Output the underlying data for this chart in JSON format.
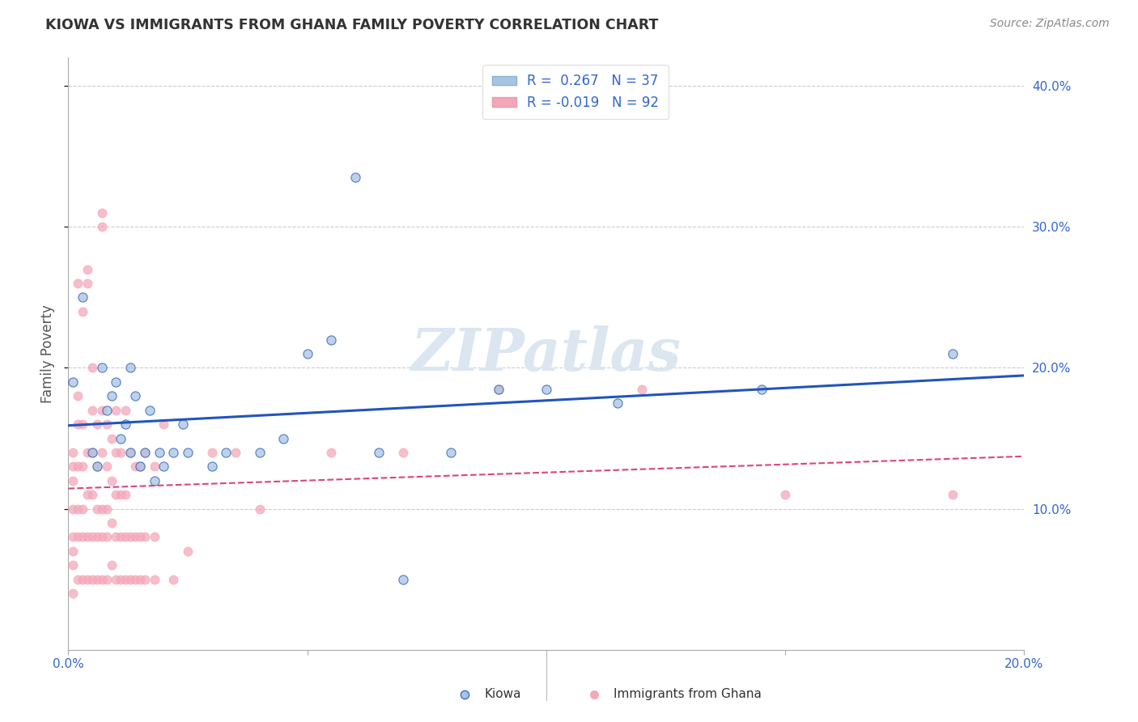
{
  "title": "KIOWA VS IMMIGRANTS FROM GHANA FAMILY POVERTY CORRELATION CHART",
  "source": "Source: ZipAtlas.com",
  "ylabel": "Family Poverty",
  "xlim": [
    0.0,
    0.2
  ],
  "ylim": [
    0.0,
    0.42
  ],
  "ytick_labels_right": [
    "10.0%",
    "20.0%",
    "30.0%",
    "40.0%"
  ],
  "ytick_vals_right": [
    0.1,
    0.2,
    0.3,
    0.4
  ],
  "color_kiowa": "#a8c4e0",
  "color_ghana": "#f4a7b9",
  "line_color_kiowa": "#2255bb",
  "line_color_ghana": "#dd4477",
  "scatter_alpha": 0.75,
  "scatter_size": 65,
  "watermark": "ZIPatlas",
  "watermark_color": "#dce6f0",
  "background_color": "#ffffff",
  "grid_color": "#cccccc",
  "kiowa_points": [
    [
      0.001,
      0.19
    ],
    [
      0.003,
      0.25
    ],
    [
      0.005,
      0.14
    ],
    [
      0.006,
      0.13
    ],
    [
      0.007,
      0.2
    ],
    [
      0.008,
      0.17
    ],
    [
      0.009,
      0.18
    ],
    [
      0.01,
      0.19
    ],
    [
      0.011,
      0.15
    ],
    [
      0.012,
      0.16
    ],
    [
      0.013,
      0.14
    ],
    [
      0.013,
      0.2
    ],
    [
      0.014,
      0.18
    ],
    [
      0.015,
      0.13
    ],
    [
      0.016,
      0.14
    ],
    [
      0.017,
      0.17
    ],
    [
      0.018,
      0.12
    ],
    [
      0.019,
      0.14
    ],
    [
      0.02,
      0.13
    ],
    [
      0.022,
      0.14
    ],
    [
      0.024,
      0.16
    ],
    [
      0.025,
      0.14
    ],
    [
      0.03,
      0.13
    ],
    [
      0.033,
      0.14
    ],
    [
      0.04,
      0.14
    ],
    [
      0.045,
      0.15
    ],
    [
      0.05,
      0.21
    ],
    [
      0.055,
      0.22
    ],
    [
      0.06,
      0.335
    ],
    [
      0.065,
      0.14
    ],
    [
      0.07,
      0.05
    ],
    [
      0.08,
      0.14
    ],
    [
      0.09,
      0.185
    ],
    [
      0.1,
      0.185
    ],
    [
      0.115,
      0.175
    ],
    [
      0.145,
      0.185
    ],
    [
      0.185,
      0.21
    ]
  ],
  "ghana_points": [
    [
      0.001,
      0.04
    ],
    [
      0.001,
      0.06
    ],
    [
      0.001,
      0.08
    ],
    [
      0.001,
      0.1
    ],
    [
      0.001,
      0.12
    ],
    [
      0.001,
      0.13
    ],
    [
      0.001,
      0.14
    ],
    [
      0.001,
      0.07
    ],
    [
      0.002,
      0.05
    ],
    [
      0.002,
      0.08
    ],
    [
      0.002,
      0.1
    ],
    [
      0.002,
      0.13
    ],
    [
      0.002,
      0.16
    ],
    [
      0.002,
      0.18
    ],
    [
      0.002,
      0.26
    ],
    [
      0.003,
      0.05
    ],
    [
      0.003,
      0.08
    ],
    [
      0.003,
      0.1
    ],
    [
      0.003,
      0.13
    ],
    [
      0.003,
      0.16
    ],
    [
      0.003,
      0.24
    ],
    [
      0.004,
      0.05
    ],
    [
      0.004,
      0.08
    ],
    [
      0.004,
      0.11
    ],
    [
      0.004,
      0.14
    ],
    [
      0.004,
      0.26
    ],
    [
      0.004,
      0.27
    ],
    [
      0.005,
      0.05
    ],
    [
      0.005,
      0.08
    ],
    [
      0.005,
      0.11
    ],
    [
      0.005,
      0.14
    ],
    [
      0.005,
      0.17
    ],
    [
      0.005,
      0.2
    ],
    [
      0.006,
      0.05
    ],
    [
      0.006,
      0.08
    ],
    [
      0.006,
      0.1
    ],
    [
      0.006,
      0.13
    ],
    [
      0.006,
      0.16
    ],
    [
      0.007,
      0.05
    ],
    [
      0.007,
      0.08
    ],
    [
      0.007,
      0.1
    ],
    [
      0.007,
      0.14
    ],
    [
      0.007,
      0.17
    ],
    [
      0.007,
      0.3
    ],
    [
      0.007,
      0.31
    ],
    [
      0.008,
      0.05
    ],
    [
      0.008,
      0.08
    ],
    [
      0.008,
      0.1
    ],
    [
      0.008,
      0.13
    ],
    [
      0.008,
      0.16
    ],
    [
      0.009,
      0.06
    ],
    [
      0.009,
      0.09
    ],
    [
      0.009,
      0.12
    ],
    [
      0.009,
      0.15
    ],
    [
      0.01,
      0.05
    ],
    [
      0.01,
      0.08
    ],
    [
      0.01,
      0.11
    ],
    [
      0.01,
      0.14
    ],
    [
      0.01,
      0.17
    ],
    [
      0.011,
      0.05
    ],
    [
      0.011,
      0.08
    ],
    [
      0.011,
      0.11
    ],
    [
      0.011,
      0.14
    ],
    [
      0.012,
      0.05
    ],
    [
      0.012,
      0.08
    ],
    [
      0.012,
      0.11
    ],
    [
      0.012,
      0.17
    ],
    [
      0.013,
      0.05
    ],
    [
      0.013,
      0.08
    ],
    [
      0.013,
      0.14
    ],
    [
      0.014,
      0.05
    ],
    [
      0.014,
      0.08
    ],
    [
      0.014,
      0.13
    ],
    [
      0.015,
      0.05
    ],
    [
      0.015,
      0.08
    ],
    [
      0.015,
      0.13
    ],
    [
      0.016,
      0.05
    ],
    [
      0.016,
      0.08
    ],
    [
      0.016,
      0.14
    ],
    [
      0.018,
      0.05
    ],
    [
      0.018,
      0.08
    ],
    [
      0.018,
      0.13
    ],
    [
      0.02,
      0.16
    ],
    [
      0.022,
      0.05
    ],
    [
      0.025,
      0.07
    ],
    [
      0.03,
      0.14
    ],
    [
      0.035,
      0.14
    ],
    [
      0.04,
      0.1
    ],
    [
      0.055,
      0.14
    ],
    [
      0.07,
      0.14
    ],
    [
      0.09,
      0.185
    ],
    [
      0.12,
      0.185
    ],
    [
      0.15,
      0.11
    ],
    [
      0.185,
      0.11
    ]
  ]
}
